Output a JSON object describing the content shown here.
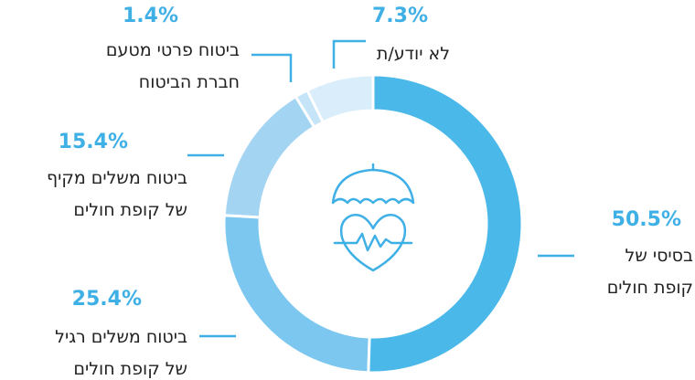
{
  "chart_data": {
    "type": "pie",
    "categories": [
      "בסיסי של\nקופת חולים",
      "ביטוח משלים רגיל\nשל קופת חולים",
      "ביטוח משלים מקיף\nשל קופת חולים",
      "ביטוח פרטי מטעם\nחברת הביטוח",
      "לא יודע/ת"
    ],
    "values": [
      50.5,
      25.4,
      15.4,
      1.4,
      7.3
    ],
    "value_labels": [
      "50.5%",
      "25.4%",
      "15.4%",
      "1.4%",
      "7.3%"
    ],
    "colors": [
      "#4bb8ea",
      "#7cc7ef",
      "#a3d5f3",
      "#c5e4f7",
      "#d9edfa"
    ]
  }
}
